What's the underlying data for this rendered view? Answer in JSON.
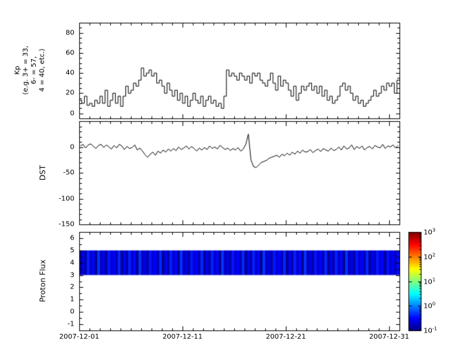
{
  "figure": {
    "background": "#ffffff",
    "axis_color": "#000000",
    "line_color": "#000000"
  },
  "x_axis": {
    "tick_labels": [
      "2007-12-01",
      "2007-12-11",
      "2007-12-21",
      "2007-12-31"
    ],
    "tick_days": [
      0,
      10,
      20,
      30
    ],
    "span_days": 31
  },
  "chart_data": [
    {
      "name": "kp-index",
      "type": "line",
      "step": true,
      "ylabel_lines": [
        "Kp",
        "(e.g. 3+ = 33,",
        "6- = 57,",
        "4 = 40, etc.)"
      ],
      "ylim": [
        -5,
        90
      ],
      "yticks": [
        0,
        20,
        40,
        60,
        80
      ],
      "samples_per_day": 4,
      "line_color": "#000000",
      "values": [
        13,
        10,
        17,
        8,
        10,
        7,
        13,
        10,
        17,
        10,
        23,
        7,
        13,
        20,
        10,
        17,
        7,
        17,
        27,
        20,
        23,
        30,
        27,
        33,
        45,
        37,
        40,
        43,
        37,
        40,
        30,
        33,
        27,
        20,
        30,
        23,
        17,
        23,
        13,
        20,
        10,
        17,
        7,
        13,
        20,
        13,
        10,
        17,
        7,
        13,
        17,
        10,
        13,
        7,
        10,
        5,
        17,
        43,
        37,
        40,
        37,
        33,
        40,
        37,
        33,
        37,
        30,
        40,
        37,
        40,
        33,
        30,
        27,
        33,
        40,
        30,
        23,
        37,
        27,
        33,
        30,
        23,
        17,
        27,
        13,
        20,
        27,
        23,
        27,
        30,
        23,
        27,
        20,
        27,
        17,
        23,
        13,
        17,
        10,
        13,
        17,
        27,
        30,
        23,
        27,
        20,
        13,
        17,
        10,
        13,
        7,
        10,
        13,
        17,
        23,
        17,
        20,
        27,
        23,
        30,
        27,
        30,
        20,
        33
      ]
    },
    {
      "name": "dst-index",
      "type": "line",
      "step": false,
      "ylabel": "DST",
      "ylim": [
        -150,
        50
      ],
      "yticks": [
        0,
        -50,
        -100,
        -150
      ],
      "samples_per_day": 4,
      "line_color": "#000000",
      "values": [
        2,
        5,
        -2,
        4,
        6,
        1,
        -3,
        3,
        5,
        -1,
        4,
        0,
        -4,
        3,
        -2,
        5,
        2,
        -5,
        1,
        -3,
        -1,
        4,
        -6,
        -2,
        -8,
        -15,
        -20,
        -14,
        -10,
        -16,
        -8,
        -12,
        -6,
        -10,
        -4,
        -8,
        -3,
        -7,
        0,
        -5,
        -2,
        2,
        -4,
        1,
        -3,
        -8,
        -2,
        -6,
        -1,
        -5,
        2,
        -3,
        0,
        -4,
        3,
        -1,
        -5,
        -2,
        -7,
        -3,
        -6,
        -1,
        -8,
        -4,
        5,
        25,
        -25,
        -38,
        -40,
        -35,
        -30,
        -28,
        -26,
        -22,
        -20,
        -18,
        -16,
        -20,
        -14,
        -17,
        -12,
        -16,
        -10,
        -14,
        -8,
        -12,
        -6,
        -10,
        -9,
        -5,
        -11,
        -7,
        -4,
        -9,
        -3,
        -6,
        -8,
        -2,
        -7,
        -5,
        0,
        -6,
        2,
        -4,
        -2,
        4,
        -5,
        1,
        -3,
        2,
        -6,
        -1,
        1,
        -4,
        3,
        0,
        -2,
        5,
        -3,
        2,
        0,
        4,
        -2,
        3
      ]
    },
    {
      "name": "proton-flux",
      "type": "heatmap",
      "ylabel": "Proton Flux",
      "ylim": [
        -1.5,
        6.5
      ],
      "yticks": [
        6,
        5,
        4,
        3,
        2,
        1,
        0,
        -1
      ],
      "band_y": [
        3,
        5
      ],
      "samples_per_day": 4,
      "values": [
        0.12,
        0.28,
        0.15,
        0.42,
        0.2,
        0.33,
        0.11,
        0.5,
        0.18,
        0.25,
        0.14,
        0.38,
        0.22,
        0.3,
        0.16,
        0.45,
        0.12,
        0.28,
        0.15,
        0.42,
        0.2,
        0.33,
        0.11,
        0.5,
        0.18,
        0.25,
        0.14,
        0.38,
        0.22,
        0.3,
        0.16,
        0.45,
        0.12,
        0.28,
        0.15,
        0.42,
        0.2,
        0.33,
        0.11,
        0.5,
        0.18,
        0.25,
        0.14,
        0.38,
        0.22,
        0.3,
        0.16,
        0.45,
        0.12,
        0.28,
        0.15,
        0.42,
        0.2,
        0.33,
        0.11,
        0.5,
        0.18,
        0.25,
        0.14,
        0.38,
        0.22,
        0.3,
        0.16,
        0.45,
        0.12,
        0.28,
        0.15,
        0.42,
        0.2,
        0.33,
        0.11,
        0.5,
        0.18,
        0.25,
        0.14,
        0.38,
        0.22,
        0.3,
        0.16,
        0.45,
        0.12,
        0.28,
        0.15,
        0.42,
        0.2,
        0.33,
        0.11,
        0.5,
        0.18,
        0.25,
        0.14,
        0.38,
        0.22,
        0.3,
        0.16,
        0.45,
        0.12,
        0.28,
        0.15,
        0.42,
        0.2,
        0.33,
        0.11,
        0.5,
        0.18,
        0.25,
        0.14,
        0.38,
        0.22,
        0.3,
        0.16,
        0.45,
        0.13,
        0.27,
        0.19,
        0.4,
        0.24,
        0.31,
        0.12,
        0.36,
        0.21,
        0.29,
        0.17,
        0.34
      ],
      "colorbar": {
        "scale": "log",
        "vmin": 0.1,
        "vmax": 1000,
        "tick_exponents": [
          3,
          2,
          1,
          0,
          -1
        ],
        "colormap": "jet"
      }
    }
  ]
}
